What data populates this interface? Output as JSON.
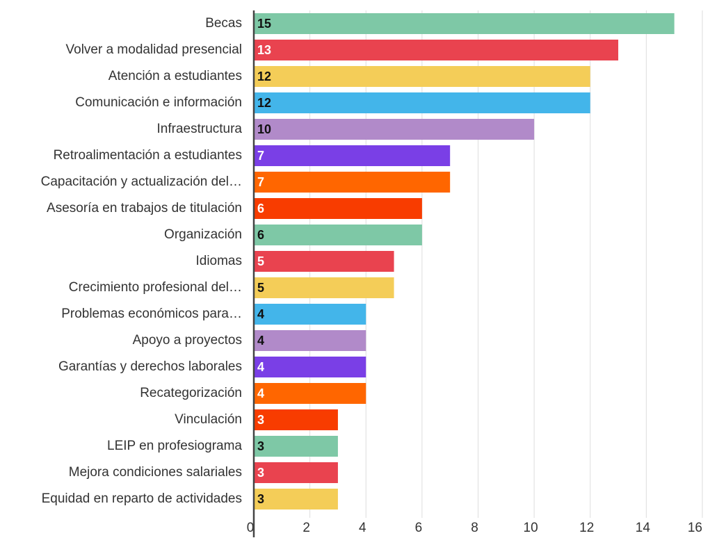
{
  "chart_data": {
    "type": "hbar",
    "categories": [
      "Becas",
      "Volver a modalidad presencial",
      "Atención a estudiantes",
      "Comunicación e información",
      "Infraestructura",
      "Retroalimentación a estudiantes",
      "Capacitación y actualización del…",
      "Asesoría en trabajos de titulación",
      "Organización",
      "Idiomas",
      "Crecimiento profesional del…",
      "Problemas económicos para…",
      "Apoyo a proyectos",
      "Garantías y derechos laborales",
      "Recategorización",
      "Vinculación",
      "LEIP en profesiograma",
      "Mejora condiciones salariales",
      "Equidad en reparto de actividades"
    ],
    "values": [
      15,
      13,
      12,
      12,
      10,
      7,
      7,
      6,
      6,
      5,
      5,
      4,
      4,
      4,
      4,
      3,
      3,
      3,
      3
    ],
    "colors": [
      "#7ec8a6",
      "#e9434f",
      "#f4cd58",
      "#43b5ea",
      "#b18ac9",
      "#7a3fe6",
      "#ff6600",
      "#f83c00",
      "#7ec8a6",
      "#e9434f",
      "#f4cd58",
      "#43b5ea",
      "#b18ac9",
      "#7a3fe6",
      "#ff6600",
      "#f83c00",
      "#7ec8a6",
      "#e9434f",
      "#f4cd58"
    ],
    "xlim": [
      0,
      16
    ],
    "xticks": [
      0,
      2,
      4,
      6,
      8,
      10,
      12,
      14,
      16
    ],
    "grid": true
  }
}
